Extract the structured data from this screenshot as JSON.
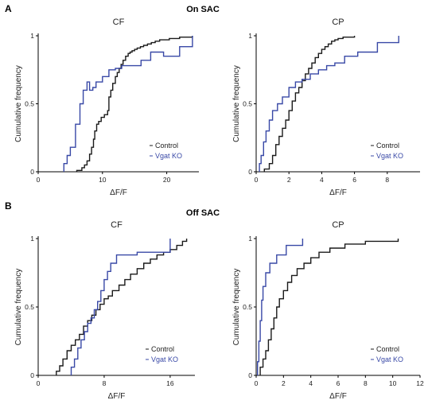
{
  "panels": [
    {
      "letter": "A",
      "heading": "On  SAC"
    },
    {
      "letter": "B",
      "heading": "Off  SAC"
    }
  ],
  "colors": {
    "control": "#1a1a1a",
    "vgat_ko": "#3848a6"
  },
  "chart_data": [
    {
      "panel": "A",
      "type": "line",
      "step": true,
      "title": "CF",
      "xlabel": "ΔF/F",
      "ylabel": "Cumulative frequency",
      "xlim": [
        0,
        25
      ],
      "ylim": [
        0,
        1
      ],
      "xticks": [
        0,
        10,
        20
      ],
      "xtick_labels": [
        "0",
        "10",
        "20"
      ],
      "yticks": [
        0,
        0.5,
        1
      ],
      "ytick_labels": [
        "0",
        "0.5",
        "1"
      ],
      "legend_position": "lower-right",
      "series": [
        {
          "name": "Control",
          "color_key": "control",
          "x": [
            6,
            6.8,
            7.2,
            7.6,
            8.0,
            8.3,
            8.6,
            8.8,
            9.1,
            9.4,
            9.8,
            10.3,
            10.8,
            11.0,
            11.3,
            11.6,
            12.0,
            12.3,
            12.6,
            12.9,
            13.2,
            13.6,
            14.0,
            14.3,
            14.6,
            15.0,
            15.4,
            15.9,
            16.4,
            17.0,
            17.6,
            18.2,
            18.9,
            19.6,
            20.4,
            21.2,
            22.0,
            22.8,
            24.0
          ],
          "y": [
            0.01,
            0.03,
            0.05,
            0.08,
            0.13,
            0.18,
            0.24,
            0.3,
            0.35,
            0.37,
            0.4,
            0.42,
            0.45,
            0.55,
            0.6,
            0.65,
            0.7,
            0.73,
            0.76,
            0.79,
            0.82,
            0.85,
            0.87,
            0.88,
            0.89,
            0.9,
            0.91,
            0.92,
            0.93,
            0.94,
            0.95,
            0.96,
            0.97,
            0.97,
            0.98,
            0.98,
            0.99,
            0.99,
            1.0
          ]
        },
        {
          "name": "Vgat KO",
          "color_key": "vgat_ko",
          "x": [
            4,
            4.5,
            5.0,
            5.8,
            6.5,
            7.0,
            7.6,
            8.0,
            8.5,
            9.0,
            10.0,
            11.0,
            12.0,
            13.0,
            14.5,
            16.0,
            17.5,
            19.5,
            22.0,
            24.0
          ],
          "y": [
            0.06,
            0.12,
            0.18,
            0.35,
            0.5,
            0.6,
            0.66,
            0.6,
            0.62,
            0.66,
            0.7,
            0.75,
            0.76,
            0.78,
            0.78,
            0.82,
            0.88,
            0.85,
            0.92,
            1.0
          ]
        }
      ]
    },
    {
      "panel": "A",
      "type": "line",
      "step": true,
      "title": "CP",
      "xlabel": "ΔF/F",
      "ylabel": "Cumulative frequency",
      "xlim": [
        0,
        10
      ],
      "ylim": [
        0,
        1
      ],
      "xticks": [
        0,
        2,
        4,
        6,
        8
      ],
      "xtick_labels": [
        "0",
        "2",
        "4",
        "6",
        "8"
      ],
      "yticks": [
        0,
        0.5,
        1
      ],
      "ytick_labels": [
        "0",
        "0.5",
        "1"
      ],
      "legend_position": "lower-right",
      "series": [
        {
          "name": "Control",
          "color_key": "control",
          "x": [
            0.5,
            0.8,
            1.0,
            1.2,
            1.4,
            1.6,
            1.8,
            2.0,
            2.2,
            2.4,
            2.6,
            2.8,
            3.0,
            3.2,
            3.4,
            3.6,
            3.8,
            4.0,
            4.2,
            4.4,
            4.6,
            4.8,
            5.0,
            5.3,
            5.6,
            6.0
          ],
          "y": [
            0.02,
            0.06,
            0.12,
            0.2,
            0.26,
            0.32,
            0.38,
            0.45,
            0.52,
            0.58,
            0.62,
            0.67,
            0.72,
            0.76,
            0.8,
            0.84,
            0.87,
            0.9,
            0.92,
            0.94,
            0.96,
            0.97,
            0.98,
            0.99,
            0.99,
            1.0
          ]
        },
        {
          "name": "Vgat KO",
          "color_key": "vgat_ko",
          "x": [
            0.2,
            0.3,
            0.45,
            0.6,
            0.8,
            1.0,
            1.3,
            1.6,
            2.0,
            2.4,
            2.8,
            3.3,
            3.8,
            4.3,
            4.8,
            5.4,
            6.2,
            7.4,
            8.7
          ],
          "y": [
            0.06,
            0.12,
            0.22,
            0.3,
            0.38,
            0.45,
            0.5,
            0.55,
            0.62,
            0.66,
            0.68,
            0.72,
            0.75,
            0.78,
            0.8,
            0.85,
            0.88,
            0.95,
            1.0
          ]
        }
      ]
    },
    {
      "panel": "B",
      "type": "line",
      "step": true,
      "title": "CF",
      "xlabel": "ΔF/F",
      "ylabel": "Cumulative frequency",
      "xlim": [
        0,
        19
      ],
      "ylim": [
        0,
        1
      ],
      "xticks": [
        0,
        8,
        16
      ],
      "xtick_labels": [
        "0",
        "8",
        "16"
      ],
      "yticks": [
        0,
        0.5,
        1
      ],
      "ytick_labels": [
        "0",
        "0.5",
        "1"
      ],
      "legend_position": "lower-right",
      "series": [
        {
          "name": "Control",
          "color_key": "control",
          "x": [
            2.2,
            2.6,
            3.0,
            3.5,
            4.0,
            4.5,
            5.0,
            5.5,
            6.0,
            6.5,
            7.0,
            7.5,
            8.0,
            8.5,
            9.0,
            9.8,
            10.5,
            11.2,
            12.0,
            12.8,
            13.6,
            14.4,
            15.2,
            16.0,
            16.8,
            17.5,
            18.0
          ],
          "y": [
            0.03,
            0.07,
            0.12,
            0.18,
            0.22,
            0.26,
            0.3,
            0.36,
            0.4,
            0.44,
            0.48,
            0.52,
            0.56,
            0.58,
            0.62,
            0.66,
            0.7,
            0.74,
            0.78,
            0.82,
            0.85,
            0.88,
            0.9,
            0.92,
            0.95,
            0.98,
            1.0
          ]
        },
        {
          "name": "Vgat KO",
          "color_key": "vgat_ko",
          "x": [
            4.0,
            4.4,
            4.8,
            5.2,
            5.6,
            6.0,
            6.4,
            6.8,
            7.2,
            7.6,
            8.0,
            8.4,
            8.8,
            9.5,
            12.0,
            16.0
          ],
          "y": [
            0.06,
            0.12,
            0.2,
            0.26,
            0.32,
            0.38,
            0.42,
            0.48,
            0.54,
            0.62,
            0.7,
            0.76,
            0.82,
            0.88,
            0.9,
            1.0
          ]
        }
      ]
    },
    {
      "panel": "B",
      "type": "line",
      "step": true,
      "title": "CP",
      "xlabel": "ΔF/F",
      "ylabel": "Cumulative frequency",
      "xlim": [
        0,
        12
      ],
      "ylim": [
        0,
        1
      ],
      "xticks": [
        0,
        2,
        4,
        6,
        8,
        10,
        12
      ],
      "xtick_labels": [
        "0",
        "2",
        "4",
        "6",
        "8",
        "10",
        "12"
      ],
      "yticks": [
        0,
        0.5,
        1
      ],
      "ytick_labels": [
        "0",
        "0.5",
        "1"
      ],
      "legend_position": "lower-right",
      "series": [
        {
          "name": "Control",
          "color_key": "control",
          "x": [
            0.3,
            0.5,
            0.7,
            0.9,
            1.1,
            1.3,
            1.5,
            1.7,
            2.0,
            2.3,
            2.6,
            3.0,
            3.5,
            4.0,
            4.6,
            5.4,
            6.5,
            8.0,
            10.4
          ],
          "y": [
            0.06,
            0.12,
            0.18,
            0.26,
            0.34,
            0.42,
            0.5,
            0.56,
            0.62,
            0.68,
            0.73,
            0.78,
            0.82,
            0.86,
            0.9,
            0.93,
            0.96,
            0.98,
            1.0
          ]
        },
        {
          "name": "Vgat KO",
          "color_key": "vgat_ko",
          "x": [
            0.1,
            0.2,
            0.3,
            0.4,
            0.5,
            0.7,
            1.0,
            1.5,
            2.2,
            3.4
          ],
          "y": [
            0.1,
            0.25,
            0.4,
            0.55,
            0.65,
            0.75,
            0.82,
            0.88,
            0.95,
            1.0
          ]
        }
      ]
    }
  ]
}
